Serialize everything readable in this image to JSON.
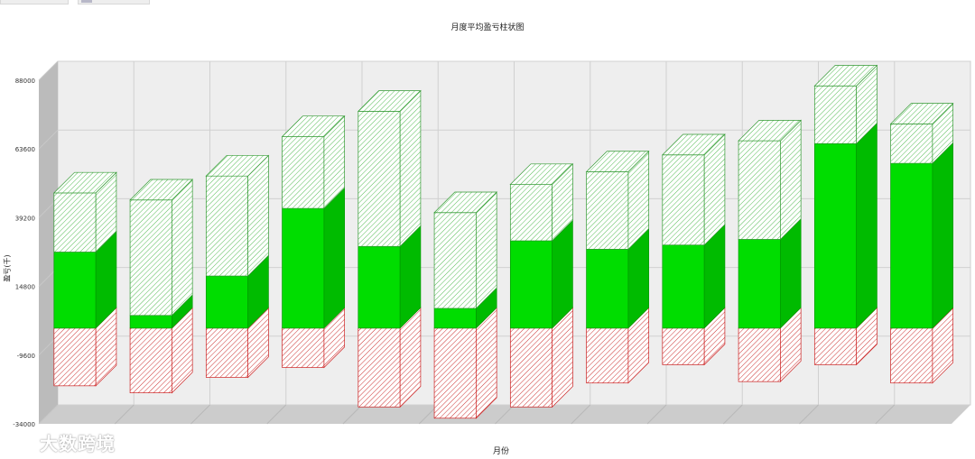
{
  "chart_data": {
    "type": "bar",
    "subtype": "3d-stacked",
    "title": "月度平均盈亏柱状图",
    "xlabel": "月份",
    "ylabel": "盈亏(千)",
    "ylim": [
      -34000,
      88000
    ],
    "yticks": [
      "88000",
      "63600",
      "39200",
      "14800",
      "-9600",
      "-34000"
    ],
    "grid": true,
    "series": [
      {
        "color": "#00dd00",
        "fill": "solid",
        "values": [
          27000,
          4500,
          18500,
          42500,
          29000,
          7000,
          31000,
          28000,
          29500,
          31500,
          65500,
          58500
        ]
      },
      {
        "color": "#66cc66",
        "fill": "hatched",
        "values": [
          21000,
          41000,
          35500,
          25500,
          48000,
          34000,
          20000,
          27500,
          32000,
          35000,
          20500,
          14000
        ]
      },
      {
        "color": "#cc2222",
        "fill": "hatched",
        "values": [
          -20500,
          -23000,
          -17500,
          -14000,
          -28000,
          -32000,
          -28000,
          -19500,
          -13000,
          -19000,
          -13000,
          -19500
        ]
      }
    ]
  },
  "watermark": {
    "text": "大数跨境"
  },
  "colors": {
    "plot_bg": "#eeeeee",
    "grid": "#d0d0d0",
    "wall": "#bbbbbb"
  }
}
